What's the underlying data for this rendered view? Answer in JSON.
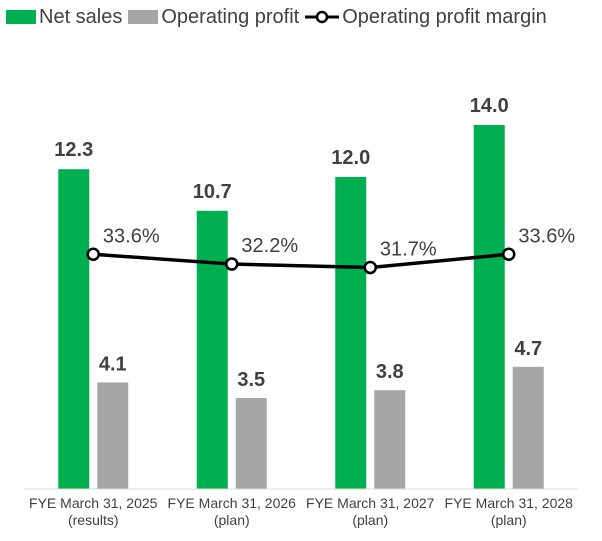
{
  "chart_data": {
    "type": "bar",
    "categories": [
      [
        "FYE March 31, 2025",
        "(results)"
      ],
      [
        "FYE March 31, 2026",
        "(plan)"
      ],
      [
        "FYE March 31, 2027",
        "(plan)"
      ],
      [
        "FYE March 31, 2028",
        "(plan)"
      ]
    ],
    "series": [
      {
        "name": "Net sales",
        "type": "bar",
        "color": "#00b050",
        "values": [
          12.3,
          10.7,
          12.0,
          14.0
        ],
        "labels": [
          "12.3",
          "10.7",
          "12.0",
          "14.0"
        ]
      },
      {
        "name": "Operating profit",
        "type": "bar",
        "color": "#a6a6a6",
        "values": [
          4.1,
          3.5,
          3.8,
          4.7
        ],
        "labels": [
          "4.1",
          "3.5",
          "3.8",
          "4.7"
        ]
      },
      {
        "name": "Operating profit margin",
        "type": "line",
        "color": "#000000",
        "values": [
          33.6,
          32.2,
          31.7,
          33.6
        ],
        "labels": [
          "33.6%",
          "32.2%",
          "31.7%",
          "33.6%"
        ]
      }
    ],
    "ylim_bars": [
      0,
      16.5
    ],
    "ylim_margin": [
      0,
      70
    ],
    "legend_position": "top",
    "grid": false
  }
}
